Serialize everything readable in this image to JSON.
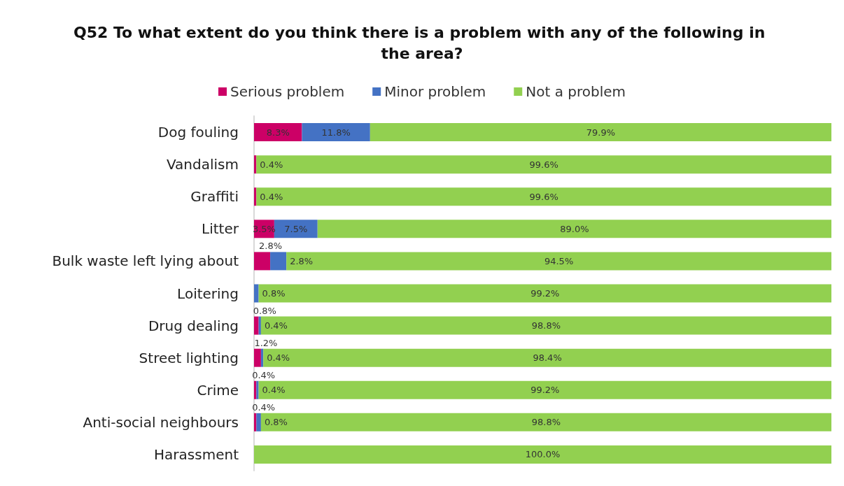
{
  "chart_data": {
    "type": "bar",
    "orientation": "horizontal",
    "stacked": true,
    "title": "Q52 To what extent do you think there is a problem with any of the following in the area?",
    "categories": [
      "Dog fouling",
      "Vandalism",
      "Graffiti",
      "Litter",
      "Bulk waste left lying about",
      "Loitering",
      "Drug dealing",
      "Street lighting",
      "Crime",
      "Anti-social neighbours",
      "Harassment"
    ],
    "series": [
      {
        "name": "Serious problem",
        "color": "#cc0066",
        "values": [
          8.3,
          0.4,
          0.4,
          3.5,
          2.8,
          0,
          0.8,
          1.2,
          0.4,
          0.4,
          0
        ],
        "value_labels": [
          "8.3%",
          "0.4%",
          "0.4%",
          "3.5%",
          "2.8%",
          null,
          "0.8%",
          "1.2%",
          "0.4%",
          "0.4%",
          null
        ]
      },
      {
        "name": "Minor problem",
        "color": "#4472c4",
        "values": [
          11.8,
          0,
          0,
          7.5,
          2.8,
          0.8,
          0.4,
          0.4,
          0.4,
          0.8,
          0
        ],
        "value_labels": [
          "11.8%",
          null,
          null,
          "7.5%",
          "2.8%",
          "0.8%",
          "0.4%",
          "0.4%",
          "0.4%",
          "0.8%",
          null
        ]
      },
      {
        "name": "Not a problem",
        "color": "#92d050",
        "values": [
          79.9,
          99.6,
          99.6,
          89.0,
          94.5,
          99.2,
          98.8,
          98.4,
          99.2,
          98.8,
          100.0
        ],
        "value_labels": [
          "79.9%",
          "99.6%",
          "99.6%",
          "89.0%",
          "94.5%",
          "99.2%",
          "98.8%",
          "98.4%",
          "99.2%",
          "98.8%",
          "100.0%"
        ]
      }
    ],
    "xlim": [
      0,
      100
    ],
    "tick_labels": "y",
    "legend": "top",
    "grid": false
  }
}
